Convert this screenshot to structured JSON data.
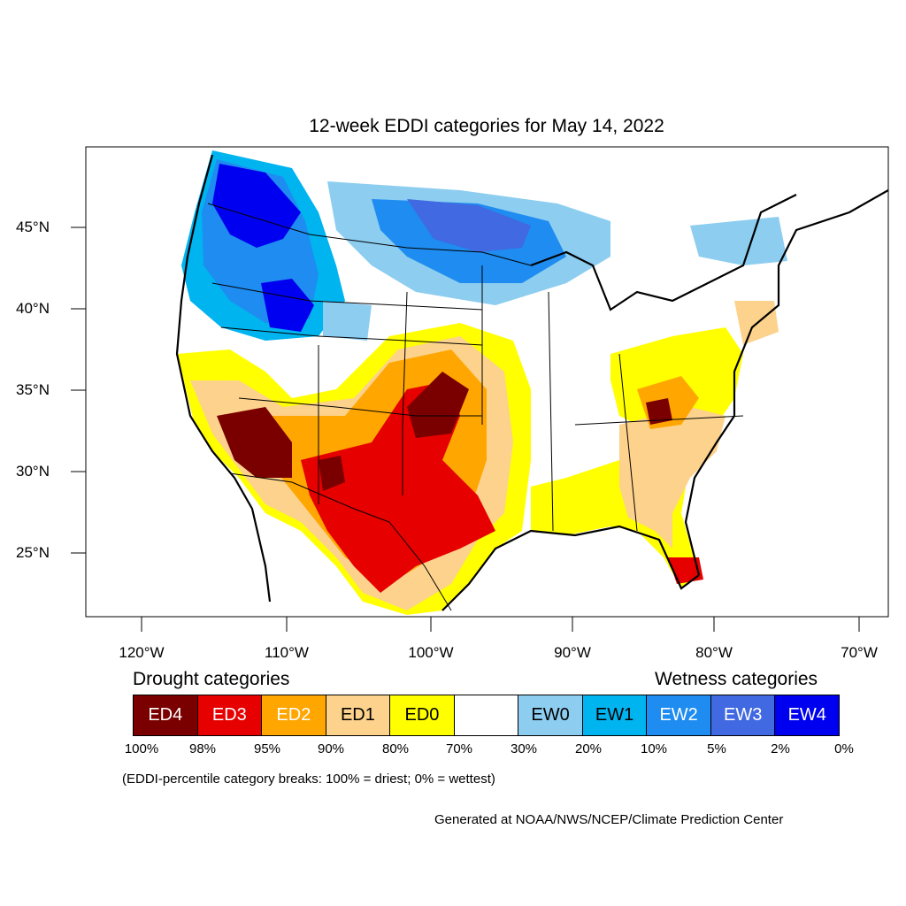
{
  "title": "12-week EDDI categories for May 14, 2022",
  "lat_labels": [
    "45°N",
    "40°N",
    "35°N",
    "30°N",
    "25°N"
  ],
  "lon_labels": [
    "120°W",
    "110°W",
    "100°W",
    "90°W",
    "80°W",
    "70°W"
  ],
  "drought_heading": "Drought categories",
  "wetness_heading": "Wetness categories",
  "legend": [
    {
      "label": "ED4",
      "color": "#7a0000",
      "text_color": "#ffffff"
    },
    {
      "label": "ED3",
      "color": "#e60000",
      "text_color": "#ffffff"
    },
    {
      "label": "ED2",
      "color": "#ffa600",
      "text_color": "#ffffff"
    },
    {
      "label": "ED1",
      "color": "#fcd28c",
      "text_color": "#000000"
    },
    {
      "label": "ED0",
      "color": "#ffff00",
      "text_color": "#000000"
    },
    {
      "label": "",
      "color": "#ffffff",
      "text_color": "#000000"
    },
    {
      "label": "EW0",
      "color": "#8ccdf0",
      "text_color": "#000000"
    },
    {
      "label": "EW1",
      "color": "#00b4f0",
      "text_color": "#000000"
    },
    {
      "label": "EW2",
      "color": "#1e8cf0",
      "text_color": "#ffffff"
    },
    {
      "label": "EW3",
      "color": "#4169e1",
      "text_color": "#ffffff"
    },
    {
      "label": "EW4",
      "color": "#0000f0",
      "text_color": "#ffffff"
    }
  ],
  "percentile_labels": [
    "100%",
    "98%",
    "95%",
    "90%",
    "80%",
    "70%",
    "30%",
    "20%",
    "10%",
    "5%",
    "2%",
    "0%"
  ],
  "note": "(EDDI-percentile category breaks: 100% = driest; 0% = wettest)",
  "credit": "Generated at NOAA/NWS/NCEP/Climate Prediction Center"
}
